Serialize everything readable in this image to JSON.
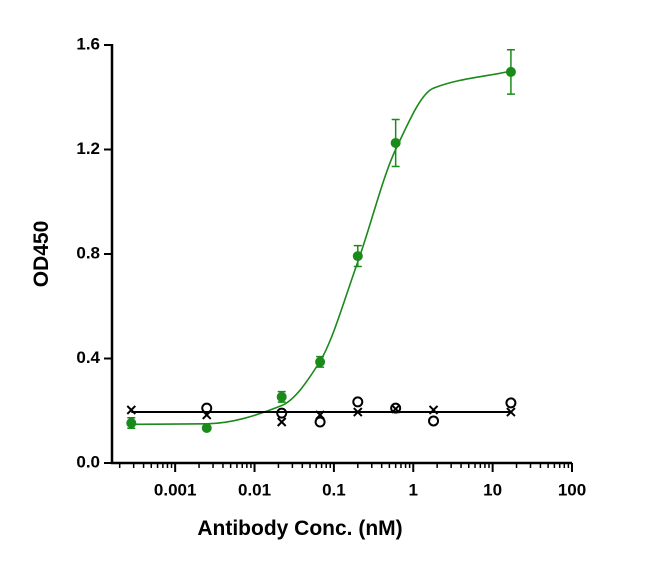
{
  "chart_data": {
    "type": "scatter",
    "xlabel": "Antibody Conc. (nM)",
    "ylabel": "OD450",
    "log_x": true,
    "x": [
      0.00028,
      0.0025,
      0.022,
      0.067,
      0.2,
      0.6,
      1.8,
      17
    ],
    "xlim": [
      0.00016,
      100
    ],
    "xticks": [
      0.001,
      0.01,
      0.1,
      1,
      10,
      100
    ],
    "ylim": [
      0,
      1.6
    ],
    "yticks": [
      {
        "value": 0,
        "label": "0.0"
      },
      0.4,
      0.8,
      1.2,
      1.6
    ],
    "series": [
      {
        "color": "#1a8a1a",
        "marker": "dot",
        "values": [
          0.153,
          0.134,
          0.253,
          0.387,
          0.792,
          1.225,
          null,
          1.497
        ],
        "errors": [
          0.02,
          null,
          0.02,
          0.02,
          0.04,
          0.09,
          null,
          0.085
        ],
        "fit": [
          0.148,
          0.15,
          0.22,
          0.39,
          0.77,
          1.2,
          1.435,
          1.5
        ]
      },
      {
        "color": "#000000",
        "marker": "circle",
        "values": [
          null,
          0.21,
          0.191,
          0.157,
          0.234,
          0.21,
          0.161,
          0.23
        ]
      },
      {
        "color": "#000000",
        "marker": "cross",
        "values": [
          0.203,
          0.184,
          0.157,
          0.184,
          0.195,
          0.207,
          0.203,
          0.195
        ],
        "fit": [
          0.195,
          0.195,
          0.195,
          0.195,
          0.195,
          0.195,
          0.195,
          0.195
        ]
      }
    ]
  }
}
